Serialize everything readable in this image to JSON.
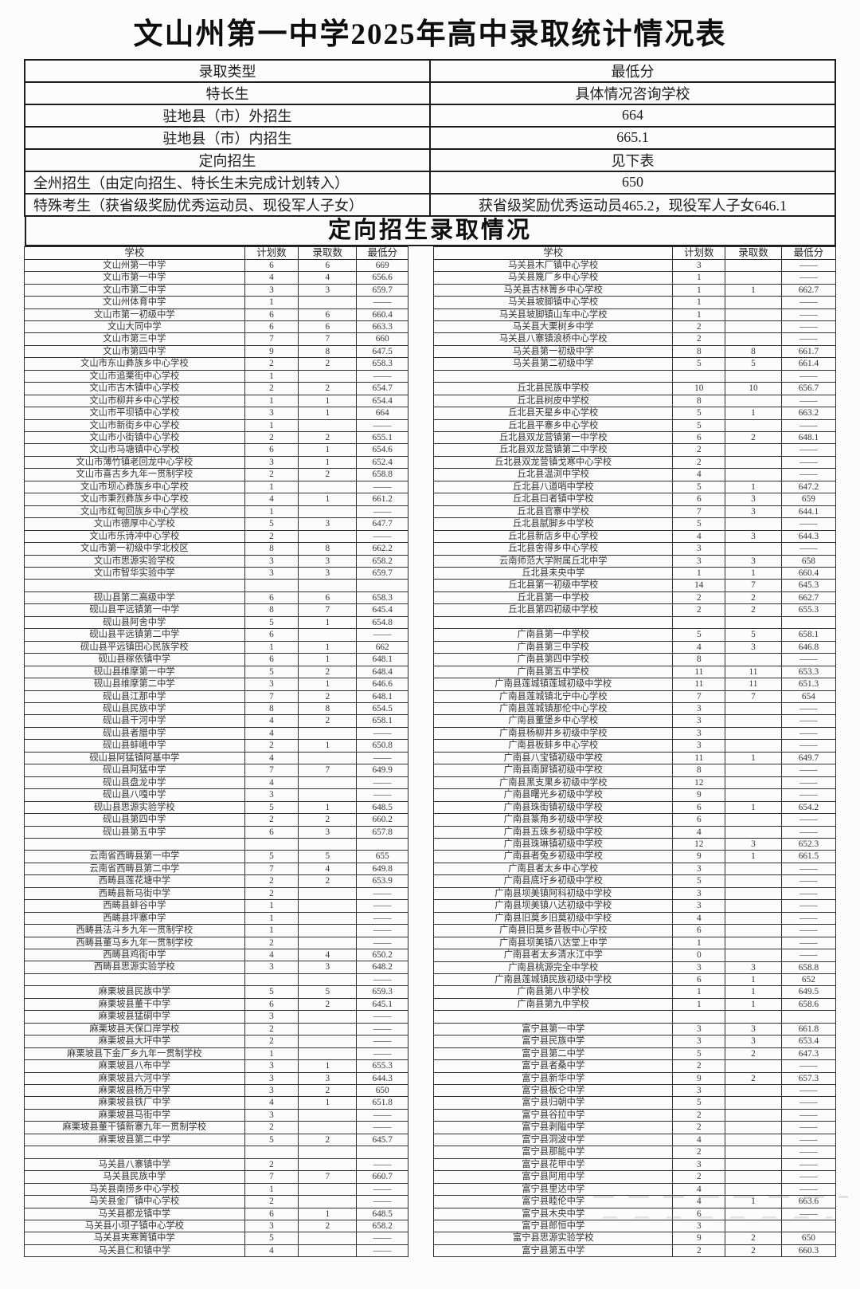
{
  "title": "文山州第一中学2025年高中录取统计情况表",
  "summary": {
    "rows": [
      [
        "录取类型",
        "最低分"
      ],
      [
        "特长生",
        "具体情况咨询学校"
      ],
      [
        "驻地县（市）外招生",
        "664"
      ],
      [
        "驻地县（市）内招生",
        "665.1"
      ],
      [
        "定向招生",
        "见下表"
      ],
      [
        "全州招生（由定向招生、特长生未完成计划转入）",
        "650"
      ],
      [
        "特殊考生（获省级奖励优秀运动员、现役军人子女）",
        "获省级奖励优秀运动员465.2，现役军人子女646.1"
      ]
    ]
  },
  "section_title": "定向招生录取情况",
  "columns": [
    "学校",
    "计划数",
    "录取数",
    "最低分"
  ],
  "left_table": {
    "rows": [
      [
        "文山州第一中学",
        "6",
        "6",
        "669"
      ],
      [
        "文山市第一中学",
        "4",
        "4",
        "656.6"
      ],
      [
        "文山市第二中学",
        "3",
        "3",
        "659.7"
      ],
      [
        "文山州体育中学",
        "1",
        "",
        "——"
      ],
      [
        "文山市第一初级中学",
        "6",
        "6",
        "660.4"
      ],
      [
        "文山大同中学",
        "6",
        "6",
        "663.3"
      ],
      [
        "文山市第三中学",
        "7",
        "7",
        "660"
      ],
      [
        "文山市第四中学",
        "9",
        "8",
        "647.5"
      ],
      [
        "文山市东山彝族乡中心学校",
        "2",
        "2",
        "658.3"
      ],
      [
        "文山市追栗街中心学校",
        "1",
        "",
        "——"
      ],
      [
        "文山市古木镇中心学校",
        "2",
        "2",
        "654.7"
      ],
      [
        "文山市柳井乡中心学校",
        "1",
        "1",
        "654.4"
      ],
      [
        "文山市平坝镇中心学校",
        "3",
        "1",
        "664"
      ],
      [
        "文山市新街乡中心学校",
        "1",
        "",
        "——"
      ],
      [
        "文山市小街镇中心学校",
        "2",
        "2",
        "655.1"
      ],
      [
        "文山市马塘镇中心学校",
        "6",
        "1",
        "654.6"
      ],
      [
        "文山市薄竹镇老回龙中心学校",
        "3",
        "1",
        "652.4"
      ],
      [
        "文山市喜古乡九年一贯制学校",
        "2",
        "2",
        "658.8"
      ],
      [
        "文山市坝心彝族乡中心学校",
        "1",
        "",
        "——"
      ],
      [
        "文山市秉烈彝族乡中心学校",
        "4",
        "1",
        "661.2"
      ],
      [
        "文山市红甸回族乡中心学校",
        "1",
        "",
        "——"
      ],
      [
        "文山市德厚中心学校",
        "5",
        "3",
        "647.7"
      ],
      [
        "文山市乐诗冲中心学校",
        "2",
        "",
        "——"
      ],
      [
        "文山市第一初级中学北校区",
        "8",
        "8",
        "662.2"
      ],
      [
        "文山市思源实验学校",
        "3",
        "3",
        "658.2"
      ],
      [
        "文山市智华实验中学",
        "3",
        "3",
        "659.7"
      ],
      [
        "",
        "",
        "",
        ""
      ],
      [
        "砚山县第二高级中学",
        "6",
        "6",
        "658.3"
      ],
      [
        "砚山县平远镇第一中学",
        "8",
        "7",
        "645.4"
      ],
      [
        "砚山县阿舍中学",
        "5",
        "1",
        "654.8"
      ],
      [
        "砚山县平远镇第二中学",
        "6",
        "",
        "——"
      ],
      [
        "砚山县平远镇田心民族学校",
        "1",
        "1",
        "662"
      ],
      [
        "砚山县稼依镇中学",
        "6",
        "1",
        "648.1"
      ],
      [
        "砚山县维摩第一中学",
        "5",
        "2",
        "648.4"
      ],
      [
        "砚山县维摩第二中学",
        "3",
        "1",
        "646.6"
      ],
      [
        "砚山县江那中学",
        "7",
        "2",
        "648.1"
      ],
      [
        "砚山县民族中学",
        "8",
        "8",
        "654.5"
      ],
      [
        "砚山县干河中学",
        "4",
        "2",
        "658.1"
      ],
      [
        "砚山县者腊中学",
        "4",
        "",
        "——"
      ],
      [
        "砚山县蚌峨中学",
        "2",
        "1",
        "650.8"
      ],
      [
        "砚山县阿猛镇阿基中学",
        "4",
        "",
        "——"
      ],
      [
        "砚山县阿猛中学",
        "7",
        "7",
        "649.9"
      ],
      [
        "砚山县盘龙中学",
        "4",
        "",
        "——"
      ],
      [
        "砚山县八嘎中学",
        "3",
        "",
        "——"
      ],
      [
        "砚山县思源实验学校",
        "5",
        "1",
        "648.5"
      ],
      [
        "砚山县第四中学",
        "2",
        "2",
        "660.2"
      ],
      [
        "砚山县第五中学",
        "6",
        "3",
        "657.8"
      ],
      [
        "",
        "",
        "",
        ""
      ],
      [
        "云南省西畴县第一中学",
        "5",
        "5",
        "655"
      ],
      [
        "云南省西畴县第二中学",
        "7",
        "4",
        "649.8"
      ],
      [
        "西畴县莲花塘中学",
        "2",
        "2",
        "653.9"
      ],
      [
        "西畴县新马街中学",
        "2",
        "",
        "——"
      ],
      [
        "西畴县蚌谷中学",
        "1",
        "",
        "——"
      ],
      [
        "西畴县坪寨中学",
        "1",
        "",
        "——"
      ],
      [
        "西畴县法斗乡九年一贯制学校",
        "1",
        "",
        "——"
      ],
      [
        "西畴县董马乡九年一贯制学校",
        "2",
        "",
        "——"
      ],
      [
        "西畴县鸡街中学",
        "4",
        "4",
        "650.2"
      ],
      [
        "西畴县思源实验学校",
        "3",
        "3",
        "648.2"
      ],
      [
        "",
        "",
        "",
        "——"
      ],
      [
        "麻栗坡县民族中学",
        "5",
        "5",
        "659.3"
      ],
      [
        "麻栗坡县董干中学",
        "6",
        "2",
        "645.1"
      ],
      [
        "麻栗坡县猛硐中学",
        "3",
        "",
        "——"
      ],
      [
        "麻栗坡县天保口岸学校",
        "2",
        "",
        "——"
      ],
      [
        "麻栗坡县大坪中学",
        "2",
        "",
        "——"
      ],
      [
        "麻栗坡县下金厂乡九年一贯制学校",
        "1",
        "",
        "——"
      ],
      [
        "麻栗坡县八布中学",
        "3",
        "1",
        "655.3"
      ],
      [
        "麻栗坡县六河中学",
        "3",
        "3",
        "644.3"
      ],
      [
        "麻栗坡县杨万中学",
        "3",
        "2",
        "650"
      ],
      [
        "麻栗坡县铁厂中学",
        "4",
        "1",
        "651.8"
      ],
      [
        "麻栗坡县马街中学",
        "3",
        "",
        "——"
      ],
      [
        "麻栗坡县董干镇新寨九年一贯制学校",
        "2",
        "",
        "——"
      ],
      [
        "麻栗坡县第二中学",
        "5",
        "2",
        "645.7"
      ],
      [
        "",
        "",
        "",
        ""
      ],
      [
        "马关县八寨镇中学",
        "2",
        "",
        "——"
      ],
      [
        "马关县民族中学",
        "7",
        "7",
        "660.7"
      ],
      [
        "马关县南捞乡中心学校",
        "1",
        "",
        "——"
      ],
      [
        "马关县金厂镇中心学校",
        "2",
        "",
        "——"
      ],
      [
        "马关县都龙镇中学",
        "6",
        "1",
        "648.5"
      ],
      [
        "马关县小坝子镇中心学校",
        "3",
        "2",
        "658.2"
      ],
      [
        "马关县夹寒箐镇中学",
        "5",
        "",
        "——"
      ],
      [
        "马关县仁和镇中学",
        "4",
        "",
        "——"
      ]
    ]
  },
  "right_table": {
    "rows": [
      [
        "马关县木厂镇中心学校",
        "3",
        "",
        "——"
      ],
      [
        "马关县篾厂乡中心学校",
        "1",
        "",
        "——"
      ],
      [
        "马关县古林箐乡中心学校",
        "1",
        "1",
        "662.7"
      ],
      [
        "马关县坡脚镇中心学校",
        "1",
        "",
        "——"
      ],
      [
        "马关县坡脚镇山车中心学校",
        "1",
        "",
        "——"
      ],
      [
        "马关县大栗树乡中学",
        "2",
        "",
        "——"
      ],
      [
        "马关县八寨镇浪桥中心学校",
        "2",
        "",
        "——"
      ],
      [
        "马关县第一初级中学",
        "8",
        "8",
        "661.7"
      ],
      [
        "马关县第二初级中学",
        "5",
        "5",
        "661.4"
      ],
      [
        "",
        "",
        "",
        "——"
      ],
      [
        "丘北县民族中学校",
        "10",
        "10",
        "656.7"
      ],
      [
        "丘北县树皮中学校",
        "8",
        "",
        "——"
      ],
      [
        "丘北县天星乡中心学校",
        "5",
        "1",
        "663.2"
      ],
      [
        "丘北县平寨乡中心学校",
        "5",
        "",
        "——"
      ],
      [
        "丘北县双龙营镇第一中学校",
        "6",
        "2",
        "648.1"
      ],
      [
        "丘北县双龙营镇第二中学校",
        "2",
        "",
        "——"
      ],
      [
        "丘北县双龙营镇戈寒中心学校",
        "2",
        "",
        "——"
      ],
      [
        "丘北县温浏中学校",
        "4",
        "",
        "——"
      ],
      [
        "丘北县八道哨中学校",
        "5",
        "1",
        "647.2"
      ],
      [
        "丘北县曰者镇中学校",
        "6",
        "3",
        "659"
      ],
      [
        "丘北县官寨中学校",
        "7",
        "3",
        "644.1"
      ],
      [
        "丘北县腻脚乡中学校",
        "5",
        "",
        "——"
      ],
      [
        "丘北县新店乡中心学校",
        "4",
        "3",
        "644.3"
      ],
      [
        "丘北县舍得乡中心学校",
        "3",
        "",
        "——"
      ],
      [
        "云南师范大学附属丘北中学",
        "3",
        "3",
        "658"
      ],
      [
        "丘北县未央中学",
        "1",
        "1",
        "660.4"
      ],
      [
        "丘北县第一初级中学校",
        "14",
        "7",
        "645.3"
      ],
      [
        "丘北县第一中学校",
        "2",
        "2",
        "662.7"
      ],
      [
        "丘北县第四初级中学校",
        "2",
        "2",
        "655.3"
      ],
      [
        "",
        "",
        "",
        ""
      ],
      [
        "广南县第一中学校",
        "5",
        "5",
        "658.1"
      ],
      [
        "广南县第三中学校",
        "4",
        "3",
        "646.8"
      ],
      [
        "广南县第四中学校",
        "8",
        "",
        "——"
      ],
      [
        "广南县第五中学校",
        "11",
        "11",
        "653.3"
      ],
      [
        "广南县莲城镇莲城初级中学校",
        "11",
        "11",
        "651.3"
      ],
      [
        "广南县莲城镇北宁中心学校",
        "7",
        "7",
        "654"
      ],
      [
        "广南县莲城镇那伦中心学校",
        "3",
        "",
        "——"
      ],
      [
        "广南县董堡乡中心学校",
        "3",
        "",
        "——"
      ],
      [
        "广南县杨柳井乡初级中学校",
        "3",
        "",
        "——"
      ],
      [
        "广南县板蚌乡中心学校",
        "3",
        "",
        "——"
      ],
      [
        "广南县八宝镇初级中学校",
        "11",
        "1",
        "649.7"
      ],
      [
        "广南县南屏镇初级中学校",
        "8",
        "",
        "——"
      ],
      [
        "广南县黑支果乡初级中学校",
        "12",
        "",
        "——"
      ],
      [
        "广南县曙光乡初级中学校",
        "9",
        "",
        "——"
      ],
      [
        "广南县珠街镇初级中学校",
        "6",
        "1",
        "654.2"
      ],
      [
        "广南县篆角乡初级中学校",
        "6",
        "",
        "——"
      ],
      [
        "广南县五珠乡初级中学校",
        "4",
        "",
        "——"
      ],
      [
        "广南县珠琳镇初级中学校",
        "12",
        "3",
        "652.3"
      ],
      [
        "广南县者兔乡初级中学校",
        "9",
        "1",
        "661.5"
      ],
      [
        "广南县者太乡中心学校",
        "3",
        "",
        "——"
      ],
      [
        "广南县底圩乡初级中学校",
        "5",
        "",
        "——"
      ],
      [
        "广南县坝美镇阿科初级中学校",
        "3",
        "",
        "——"
      ],
      [
        "广南县坝美镇八达初级中学校",
        "3",
        "",
        "——"
      ],
      [
        "广南县旧莫乡旧莫初级中学校",
        "4",
        "",
        "——"
      ],
      [
        "广南县旧莫乡昔板中心学校",
        "6",
        "",
        "——"
      ],
      [
        "广南县坝美镇八达堂上中学",
        "1",
        "",
        "——"
      ],
      [
        "广南县者太乡清水江中学",
        "0",
        "",
        "——"
      ],
      [
        "广南县桃源完全中学校",
        "3",
        "3",
        "658.8"
      ],
      [
        "广南县莲城镇民族初级中学校",
        "6",
        "1",
        "652"
      ],
      [
        "广南县第八中学校",
        "1",
        "1",
        "649.5"
      ],
      [
        "广南县第九中学校",
        "1",
        "1",
        "658.6"
      ],
      [
        "",
        "",
        "",
        ""
      ],
      [
        "富宁县第一中学",
        "3",
        "3",
        "661.8"
      ],
      [
        "富宁县民族中学",
        "3",
        "3",
        "653.4"
      ],
      [
        "富宁县第二中学",
        "5",
        "2",
        "647.3"
      ],
      [
        "富宁县者桑中学",
        "2",
        "",
        "——"
      ],
      [
        "富宁县新华中学",
        "9",
        "2",
        "657.3"
      ],
      [
        "富宁县板仑中学",
        "3",
        "",
        "——"
      ],
      [
        "富宁县归朝中学",
        "5",
        "",
        "——"
      ],
      [
        "富宁县谷拉中学",
        "2",
        "",
        "——"
      ],
      [
        "富宁县剥隘中学",
        "2",
        "",
        "——"
      ],
      [
        "富宁县洞波中学",
        "4",
        "",
        "——"
      ],
      [
        "富宁县那能中学",
        "2",
        "",
        "——"
      ],
      [
        "富宁县花甲中学",
        "3",
        "",
        "——"
      ],
      [
        "富宁县阿用中学",
        "2",
        "",
        "——"
      ],
      [
        "富宁县里达中学",
        "4",
        "",
        "——"
      ],
      [
        "富宁县睦伦中学",
        "4",
        "1",
        "663.6"
      ],
      [
        "富宁县木央中学",
        "6",
        "",
        "——"
      ],
      [
        "富宁县郎恒中学",
        "3",
        "",
        ""
      ],
      [
        "富宁县思源实验学校",
        "9",
        "2",
        "650"
      ],
      [
        "富宁县第五中学",
        "2",
        "2",
        "660.3"
      ]
    ]
  }
}
